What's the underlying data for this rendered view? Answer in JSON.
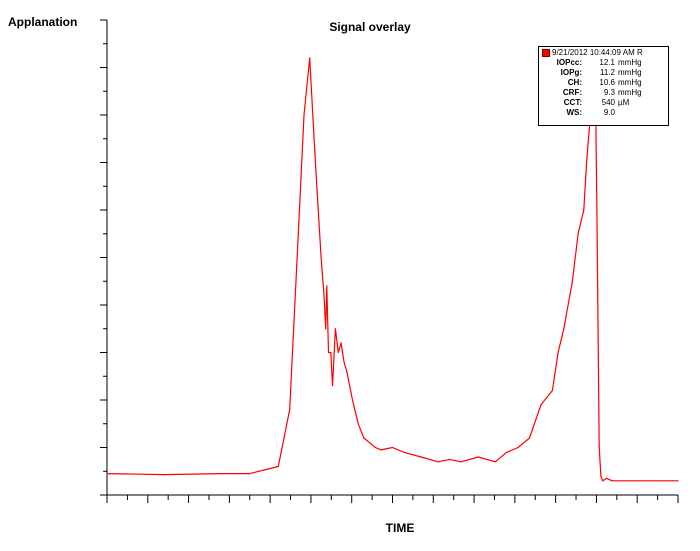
{
  "chart_data": {
    "type": "line",
    "title": "Signal overlay",
    "ylabel": "Applanation",
    "xlabel": "TIME",
    "xlim": [
      0,
      1
    ],
    "ylim": [
      0,
      1
    ],
    "grid": false,
    "legend_position": "top-right",
    "line_color": "#ff0000",
    "series": [
      {
        "x": [
          0.0,
          0.1,
          0.2,
          0.25,
          0.3,
          0.32,
          0.335,
          0.345,
          0.355,
          0.365,
          0.375,
          0.38,
          0.383,
          0.385,
          0.388,
          0.392,
          0.395,
          0.4,
          0.405,
          0.41,
          0.415,
          0.42,
          0.43,
          0.44,
          0.45,
          0.46,
          0.47,
          0.48,
          0.5,
          0.52,
          0.55,
          0.58,
          0.6,
          0.62,
          0.65,
          0.68,
          0.7,
          0.72,
          0.74,
          0.76,
          0.78,
          0.79,
          0.8,
          0.815,
          0.825,
          0.835,
          0.84,
          0.85,
          0.855,
          0.858,
          0.862,
          0.865,
          0.868,
          0.875,
          0.885,
          0.9,
          0.95,
          1.0
        ],
        "y": [
          0.045,
          0.043,
          0.045,
          0.045,
          0.06,
          0.18,
          0.55,
          0.8,
          0.92,
          0.7,
          0.5,
          0.42,
          0.35,
          0.44,
          0.3,
          0.3,
          0.23,
          0.35,
          0.3,
          0.32,
          0.28,
          0.26,
          0.2,
          0.15,
          0.12,
          0.11,
          0.1,
          0.095,
          0.1,
          0.09,
          0.08,
          0.07,
          0.075,
          0.07,
          0.08,
          0.07,
          0.09,
          0.1,
          0.12,
          0.19,
          0.22,
          0.3,
          0.35,
          0.45,
          0.55,
          0.6,
          0.7,
          0.85,
          0.9,
          0.6,
          0.1,
          0.04,
          0.03,
          0.035,
          0.03,
          0.03,
          0.03,
          0.03
        ]
      }
    ]
  },
  "legend": {
    "header": "9/21/2012 10:44:09 AM R",
    "rows": [
      {
        "key": "IOPcc:",
        "value": "12.1",
        "unit": "mmHg"
      },
      {
        "key": "IOPg:",
        "value": "11.2",
        "unit": "mmHg"
      },
      {
        "key": "CH:",
        "value": "10.6",
        "unit": "mmHg"
      },
      {
        "key": "CRF:",
        "value": "9.3",
        "unit": "mmHg"
      },
      {
        "key": "CCT:",
        "value": "540",
        "unit": "µM"
      },
      {
        "key": "WS:",
        "value": "9.0",
        "unit": ""
      }
    ]
  }
}
